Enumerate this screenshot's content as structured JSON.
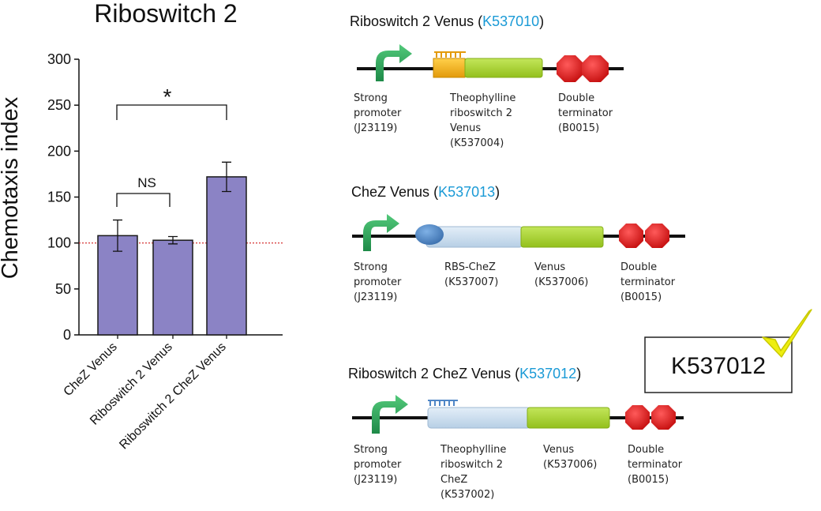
{
  "chart_data": {
    "type": "bar",
    "title": "Riboswitch 2",
    "ylabel": "Chemotaxis index",
    "xlabel": "",
    "ylim": [
      0,
      300
    ],
    "yticks": [
      "0",
      "50",
      "100",
      "150",
      "200",
      "250",
      "300"
    ],
    "categories": [
      "CheZ Venus",
      "Riboswitch 2 Venus",
      "Riboswitch 2 CheZ Venus"
    ],
    "values": [
      108,
      103,
      172
    ],
    "errors": [
      17,
      4,
      16
    ],
    "bar_color": "#8b83c5",
    "reference_line": {
      "value": 100,
      "style": "dotted",
      "color": "#d11f1f"
    },
    "grid": false,
    "annotations": [
      {
        "label": "*",
        "between": [
          0,
          2
        ]
      },
      {
        "label": "NS",
        "between": [
          0,
          1
        ]
      }
    ]
  },
  "constructs": [
    {
      "title": "Riboswitch 2 Venus (",
      "id": "K537010",
      "title_end": ")",
      "parts": [
        {
          "lines": [
            "Strong",
            "promoter",
            "(J23119)"
          ]
        },
        {
          "lines": [
            "Theophylline",
            "riboswitch 2",
            "Venus",
            "(K537004)"
          ]
        },
        {
          "lines": [
            "Double",
            "terminator",
            "(B0015)"
          ]
        }
      ]
    },
    {
      "title": "CheZ Venus (",
      "id": "K537013",
      "title_end": ")",
      "parts": [
        {
          "lines": [
            "Strong",
            "promoter",
            "(J23119)"
          ]
        },
        {
          "lines": [
            "RBS-CheZ",
            "(K537007)"
          ]
        },
        {
          "lines": [
            "Venus",
            "(K537006)"
          ]
        },
        {
          "lines": [
            "Double",
            "terminator",
            "(B0015)"
          ]
        }
      ]
    },
    {
      "title": "Riboswitch 2 CheZ Venus (",
      "id": "K537012",
      "title_end": ")",
      "parts": [
        {
          "lines": [
            "Strong",
            "promoter",
            "(J23119)"
          ]
        },
        {
          "lines": [
            "Theophylline",
            "riboswitch 2",
            "CheZ",
            "(K537002)"
          ]
        },
        {
          "lines": [
            "Venus",
            "(K537006)"
          ]
        },
        {
          "lines": [
            "Double",
            "terminator",
            "(B0015)"
          ]
        }
      ]
    }
  ],
  "callout": {
    "text": "K537012"
  },
  "colors": {
    "promoter": "#2aa65a",
    "riboswitch_yellow": "#f2b01e",
    "riboswitch_blue": "#5b8fc9",
    "rbs": "#4f86c6",
    "chez": "#c9dcec",
    "venus": "#a6d12c",
    "terminator": "#e02020",
    "check": "#e6e600"
  }
}
